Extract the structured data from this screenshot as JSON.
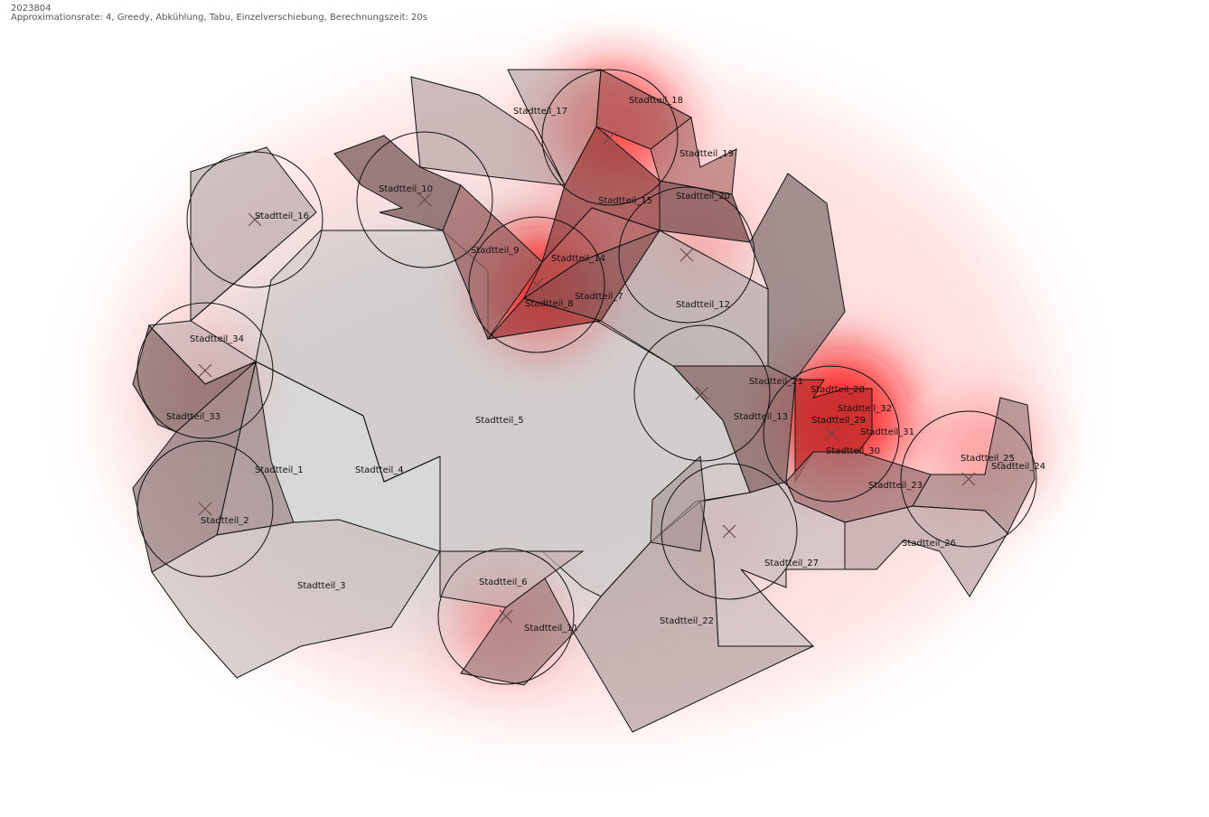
{
  "header": {
    "id": "2023804",
    "params": "Approximationsrate: 4, Greedy, Abkühlung, Tabu, Einzelverschiebung, Berechnungszeit: 20s"
  },
  "labels": [
    "Stadtteil_1",
    "Stadtteil_2",
    "Stadtteil_3",
    "Stadtteil_4",
    "Stadtteil_5",
    "Stadtteil_6",
    "Stadtteil_7",
    "Stadtteil_8",
    "Stadtteil_9",
    "Stadtteil_10",
    "Stadtteil_11",
    "Stadtteil_12",
    "Stadtteil_13",
    "Stadtteil_14",
    "Stadtteil_15",
    "Stadtteil_16",
    "Stadtteil_17",
    "Stadtteil_18",
    "Stadtteil_19",
    "Stadtteil_20",
    "Stadtteil_21",
    "Stadtteil_22",
    "Stadtteil_23",
    "Stadtteil_24",
    "Stadtteil_25",
    "Stadtteil_26",
    "Stadtteil_27",
    "Stadtteil_28",
    "Stadtteil_29",
    "Stadtteil_30",
    "Stadtteil_31",
    "Stadtteil_32",
    "Stadtteil_33",
    "Stadtteil_34"
  ],
  "colors": {
    "heat": "#ff0000",
    "polygon_light": "#d3d3d3",
    "polygon_dark": "#8a6e6e",
    "outline": "#111111"
  }
}
